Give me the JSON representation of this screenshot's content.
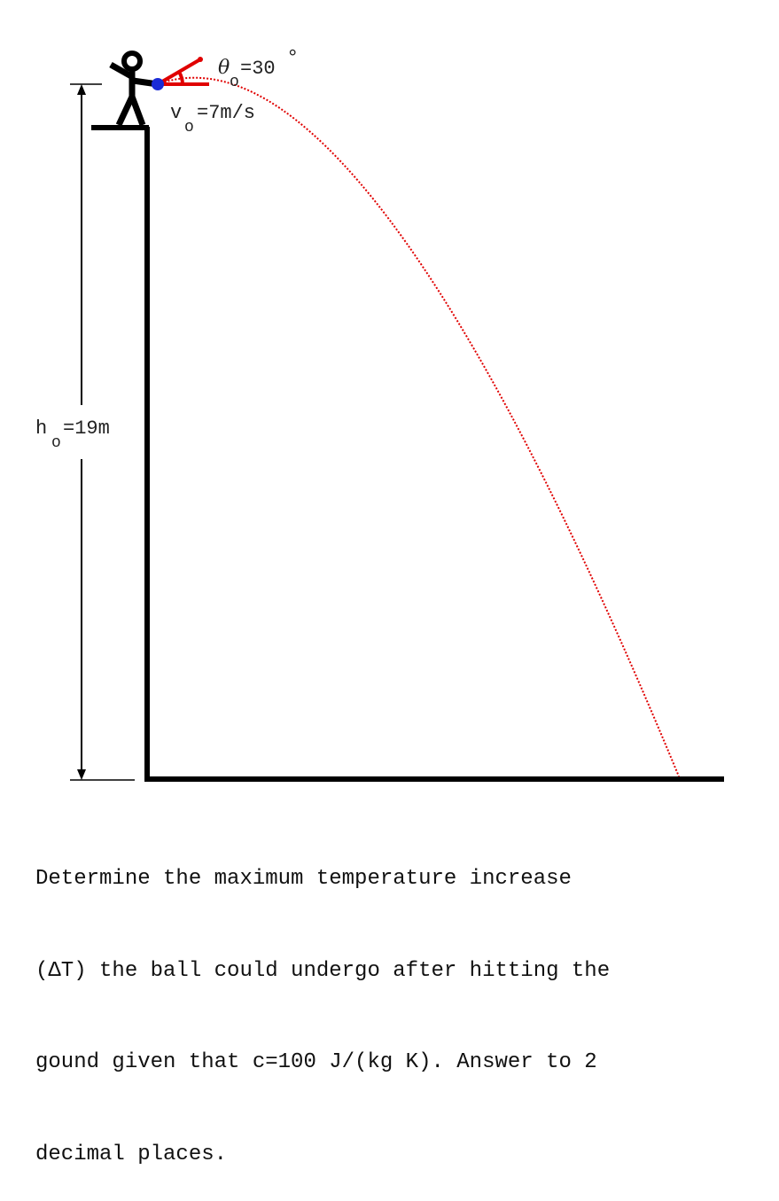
{
  "labels": {
    "theta": "θ",
    "theta_sub": "o",
    "theta_value": "=30",
    "degree": "°",
    "v": "v",
    "v_sub": "o",
    "v_value": "=7m/s",
    "h": "h",
    "h_sub": "o",
    "h_value": "=19m"
  },
  "question": {
    "line1": "Determine the maximum temperature increase",
    "line2": "(ΔT) the ball could undergo after hitting the",
    "line3": "gound given that c=100 J/(kg K). Answer to 2",
    "line4": "decimal places."
  },
  "colors": {
    "structure": "#000000",
    "trajectory": "#e00000",
    "angle_indicator": "#e00000",
    "ball": "#1a2bd6"
  }
}
